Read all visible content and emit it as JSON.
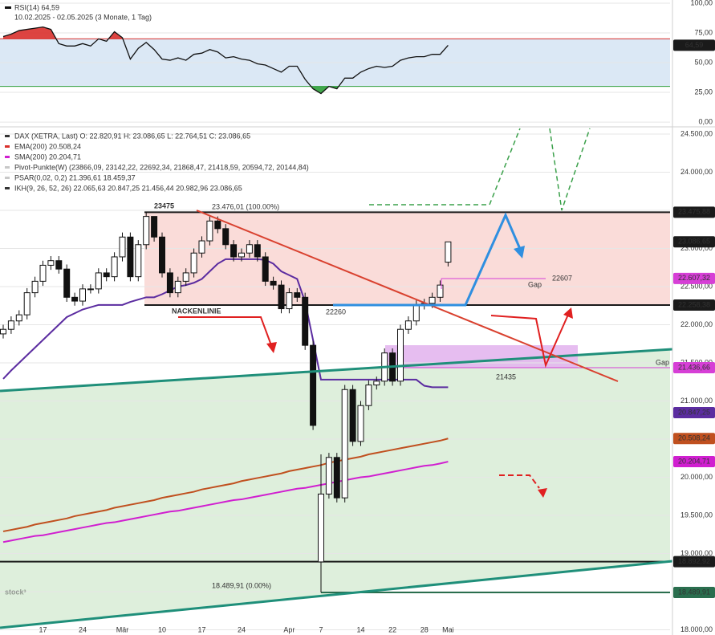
{
  "chart_data": [
    {
      "type": "line",
      "title": "RSI(14) 64,59",
      "subtitle": "10.02.2025 - 02.05.2025 (3 Monate, 1 Tag)",
      "values": [
        72,
        74,
        77,
        78,
        79,
        80,
        78,
        66,
        64,
        64,
        66,
        64,
        70,
        68,
        76,
        71,
        53,
        62,
        67,
        61,
        53,
        52,
        54,
        52,
        57,
        58,
        61,
        59,
        54,
        55,
        53,
        52,
        49,
        48,
        45,
        42,
        47,
        47,
        36,
        28,
        24,
        30,
        28,
        37,
        37,
        42,
        45,
        47,
        46,
        47,
        52,
        54,
        55,
        55,
        57,
        57,
        64.59
      ],
      "color": "#111111",
      "ylim": [
        -4,
        102.7
      ],
      "yticks": [
        {
          "value": 100,
          "label": "100,00"
        },
        {
          "value": 75,
          "label": "75,00"
        },
        {
          "value": 50,
          "label": "50,00"
        },
        {
          "value": 25,
          "label": "25,00"
        },
        {
          "value": 0,
          "label": "0,00"
        }
      ],
      "grid": true,
      "levels": [
        {
          "value": 70,
          "color": "#d9302c"
        },
        {
          "value": 30,
          "color": "#2e9e3a"
        }
      ],
      "tags": [
        {
          "value": 64.59,
          "label": "64,59",
          "color": "#1a1a1a"
        }
      ]
    },
    {
      "type": "candlestick",
      "legend": [
        "DAX (XETRA, Last)  O: 22.820,91  H: 23.086,65  L: 22.764,51  C: 23.086,65",
        "EMA(200)  20.508,24",
        "SMA(200)  20.204,71",
        "Pivot-Punkte(W)  (23866,09, 23142,22, 22692,34, 21868,47, 21418,59, 20594,72, 20144,84)",
        "PSAR(0,02, 0,2)  21.396,61  18.459,37",
        "IKH(9, 26, 52, 26)  22.065,63  20.847,25  21.456,44  20.982,96  23.086,65"
      ],
      "legend_colors": [
        "#333333",
        "#d9302c",
        "#d01fd0",
        "#c8c8c8",
        "#c8c8c8",
        "#333333"
      ],
      "categories": [
        null,
        null,
        null,
        null,
        null,
        "17",
        null,
        null,
        null,
        null,
        "24",
        null,
        null,
        null,
        null,
        "Mär",
        null,
        null,
        null,
        null,
        "10",
        null,
        null,
        null,
        null,
        "17",
        null,
        null,
        null,
        null,
        "24",
        null,
        null,
        null,
        null,
        null,
        "Apr",
        null,
        null,
        null,
        "7",
        null,
        null,
        null,
        null,
        "14",
        null,
        null,
        null,
        "22",
        null,
        null,
        null,
        "28",
        null,
        null,
        "Mai"
      ],
      "open": [
        21880,
        21940,
        22050,
        22130,
        22420,
        22570,
        22780,
        22840,
        22730,
        22360,
        22310,
        22470,
        22470,
        22680,
        22630,
        22890,
        23150,
        22630,
        23050,
        23420,
        23150,
        22680,
        22420,
        22570,
        22680,
        22940,
        23100,
        23360,
        23260,
        23050,
        22890,
        22940,
        23050,
        22890,
        22570,
        22520,
        22210,
        22420,
        22360,
        21730,
        18890,
        19780,
        20260,
        19730,
        21150,
        20470,
        20940,
        21210,
        21260,
        21630,
        21260,
        21940,
        22050,
        22260,
        22280,
        22360,
        22820.91
      ],
      "high": [
        22000,
        22110,
        22190,
        22480,
        22630,
        22840,
        22900,
        22900,
        22790,
        22420,
        22530,
        22530,
        22740,
        22740,
        22950,
        23210,
        23210,
        23110,
        23476.01,
        23400,
        23210,
        22740,
        22630,
        22740,
        23000,
        23160,
        23420,
        23420,
        23320,
        23110,
        23000,
        23110,
        23110,
        22950,
        22630,
        22580,
        22480,
        22480,
        22420,
        21790,
        20300,
        20320,
        20320,
        21210,
        21210,
        21000,
        21270,
        21320,
        21690,
        21690,
        22000,
        22110,
        22320,
        22340,
        22420,
        22580,
        23086.65
      ],
      "low": [
        21820,
        21880,
        21990,
        22070,
        22360,
        22510,
        22720,
        22670,
        22300,
        22250,
        22250,
        22410,
        22410,
        22570,
        22570,
        22830,
        22570,
        22570,
        22990,
        23090,
        22620,
        22360,
        22360,
        22510,
        22620,
        22880,
        23040,
        23200,
        22990,
        22830,
        22830,
        22880,
        22830,
        22510,
        22460,
        22150,
        22150,
        22300,
        21670,
        20620,
        18489.91,
        19720,
        19670,
        19670,
        20410,
        20410,
        20880,
        21150,
        21200,
        21200,
        21200,
        21880,
        21990,
        22200,
        22220,
        22300,
        22764.51
      ],
      "close": [
        21940,
        22050,
        22130,
        22420,
        22570,
        22780,
        22840,
        22730,
        22360,
        22310,
        22470,
        22470,
        22680,
        22630,
        22890,
        23150,
        22630,
        23050,
        23420,
        23150,
        22680,
        22420,
        22570,
        22680,
        22940,
        23100,
        23360,
        23260,
        23050,
        22890,
        22940,
        23050,
        22890,
        22570,
        22520,
        22210,
        22420,
        22360,
        21730,
        20680,
        19780,
        20260,
        19730,
        21150,
        20470,
        20940,
        21210,
        21260,
        21630,
        21260,
        21940,
        22050,
        22260,
        22280,
        22360,
        22520,
        23086.65
      ],
      "series": [
        {
          "color": "#c0501f",
          "values": [
            19290,
            19310,
            19330,
            19350,
            19380,
            19400,
            19420,
            19440,
            19460,
            19490,
            19510,
            19530,
            19550,
            19570,
            19600,
            19620,
            19640,
            19660,
            19680,
            19700,
            19730,
            19750,
            19770,
            19790,
            19810,
            19840,
            19860,
            19880,
            19900,
            19920,
            19950,
            19970,
            19990,
            20010,
            20030,
            20050,
            20080,
            20100,
            20120,
            20140,
            20160,
            20190,
            20210,
            20230,
            20250,
            20270,
            20300,
            20320,
            20340,
            20360,
            20380,
            20400,
            20420,
            20440,
            20460,
            20480,
            20508.24
          ]
        },
        {
          "color": "#d01fd0",
          "values": [
            19150,
            19170,
            19190,
            19210,
            19230,
            19240,
            19260,
            19280,
            19300,
            19320,
            19340,
            19360,
            19380,
            19400,
            19410,
            19430,
            19450,
            19470,
            19490,
            19510,
            19530,
            19550,
            19560,
            19580,
            19600,
            19620,
            19640,
            19660,
            19680,
            19700,
            19710,
            19730,
            19750,
            19770,
            19790,
            19810,
            19830,
            19850,
            19860,
            19880,
            19900,
            19920,
            19940,
            19960,
            19980,
            20000,
            20010,
            20030,
            20050,
            20070,
            20090,
            20110,
            20130,
            20150,
            20160,
            20180,
            20204.71
          ]
        },
        {
          "color": "#5b2ca0",
          "values": [
            21290,
            21400,
            21500,
            21600,
            21700,
            21800,
            21900,
            22000,
            22100,
            22150,
            22200,
            22230,
            22260,
            22260,
            22260,
            22260,
            22300,
            22330,
            22360,
            22360,
            22400,
            22450,
            22500,
            22520,
            22550,
            22600,
            22700,
            22800,
            22860,
            22860,
            22860,
            22860,
            22860,
            22850,
            22800,
            22700,
            22650,
            22600,
            22300,
            21800,
            21280,
            21280,
            21280,
            21280,
            21280,
            21280,
            21280,
            21280,
            21280,
            21280,
            21280,
            21280,
            21280,
            21200,
            21180,
            21180,
            21180
          ]
        }
      ],
      "ylim": [
        17942,
        24574
      ],
      "yticks": [
        {
          "value": 24500,
          "label": "24.500,00"
        },
        {
          "value": 24000,
          "label": "24.000,00"
        },
        {
          "value": 23500,
          "label": "23.500,00"
        },
        {
          "value": 23000,
          "label": "23.000,00"
        },
        {
          "value": 22500,
          "label": "22.500,00"
        },
        {
          "value": 22000,
          "label": "22.000,00"
        },
        {
          "value": 21500,
          "label": "21.500,00"
        },
        {
          "value": 21000,
          "label": "21.000,00"
        },
        {
          "value": 20500,
          "label": "20.500,00"
        },
        {
          "value": 20000,
          "label": "20.000,00"
        },
        {
          "value": 19500,
          "label": "19.500,00"
        },
        {
          "value": 19000,
          "label": "19.000,00"
        },
        {
          "value": 18500,
          "label": "18.500,00"
        },
        {
          "value": 18000,
          "label": "18.000,00"
        }
      ],
      "grid": true,
      "tags": [
        {
          "value": 23475.88,
          "label": "23.475,88",
          "color": "#1a1a1a",
          "line": true
        },
        {
          "value": 23086.65,
          "label": "23.086,65",
          "color": "#1a1a1a",
          "line": false
        },
        {
          "value": 22607.32,
          "label": "22.607,32",
          "color": "#d63fd6",
          "line": false
        },
        {
          "value": 22258.38,
          "label": "22.258,38",
          "color": "#1a1a1a",
          "line": true
        },
        {
          "value": 21436.66,
          "label": "21.436,66",
          "color": "#d63fd6",
          "line": true
        },
        {
          "value": 20847.25,
          "label": "20.847,25",
          "color": "#5b2ca0",
          "line": false
        },
        {
          "value": 20508.24,
          "label": "20.508,24",
          "color": "#c0501f",
          "line": false
        },
        {
          "value": 20204.71,
          "label": "20.204,71",
          "color": "#d01fd0",
          "line": false
        },
        {
          "value": 18892.92,
          "label": "18.892,92",
          "color": "#1a1a1a",
          "line": true
        },
        {
          "value": 18489.91,
          "label": "18.489,91",
          "color": "#2a6e4e",
          "line": true
        }
      ],
      "annotations": [
        "23475",
        "22607",
        "22260",
        "21435",
        "NACKENLINIE",
        "Gap",
        "Gap",
        "23.476,01 (100.00%)",
        "18.489,91 (0.00%)"
      ],
      "watermark": "stock³"
    }
  ]
}
